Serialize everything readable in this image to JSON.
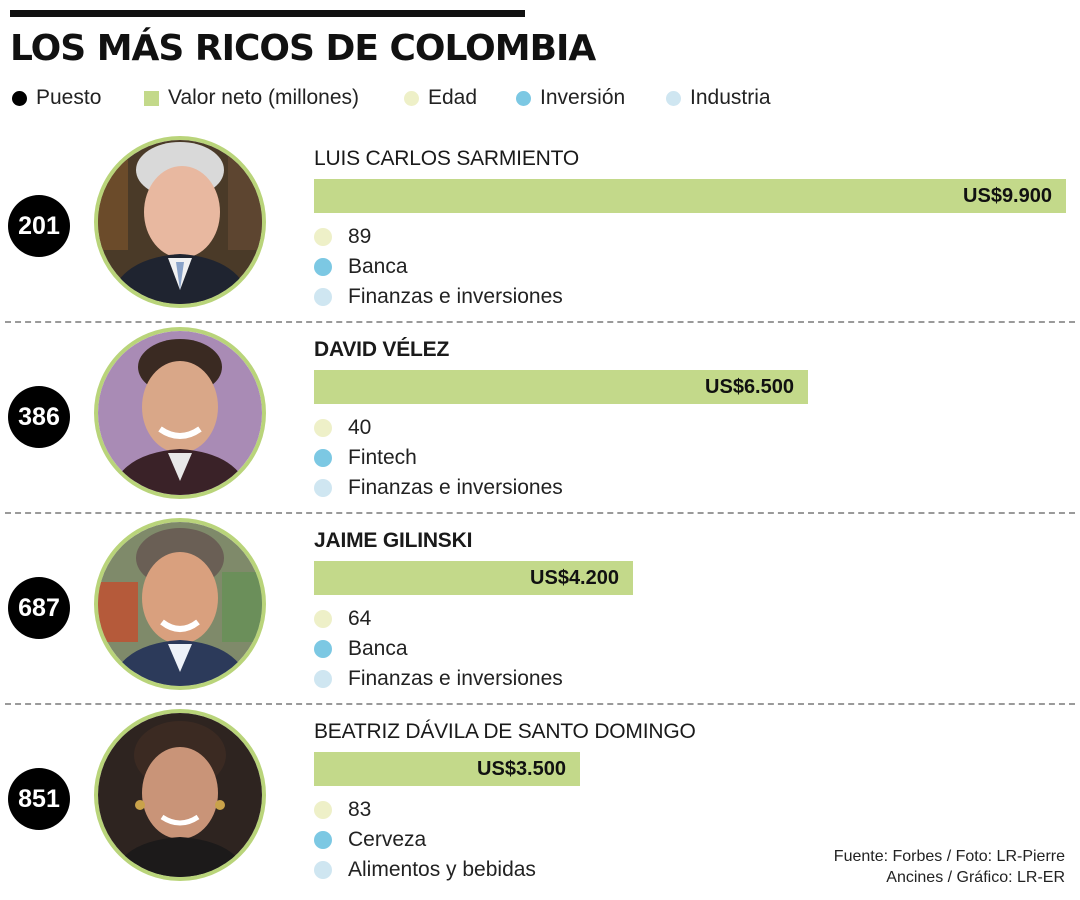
{
  "title": "LOS MÁS RICOS DE COLOMBIA",
  "legend": [
    {
      "label": "Puesto",
      "color": "#000000",
      "shape": "circle"
    },
    {
      "label": "Valor neto (millones)",
      "color": "#c3d98a",
      "shape": "square"
    },
    {
      "label": "Edad",
      "color": "#eef0c8",
      "shape": "circle"
    },
    {
      "label": "Inversión",
      "color": "#7cc8e3",
      "shape": "circle"
    },
    {
      "label": "Industria",
      "color": "#cfe6f1",
      "shape": "circle"
    }
  ],
  "colors": {
    "bar": "#c3d98a",
    "edad": "#eef0c8",
    "inversion": "#7cc8e3",
    "industria": "#cfe6f1",
    "rank": "#000000"
  },
  "people": [
    {
      "rank": "201",
      "name": "LUIS CARLOS SARMIENTO",
      "value_label": "US$9.900",
      "age": "89",
      "investment": "Banca",
      "industry": "Finanzas e inversiones",
      "photo": "portrait-photo-luis-carlos-sarmiento"
    },
    {
      "rank": "386",
      "name": "DAVID VÉLEZ",
      "value_label": "US$6.500",
      "age": "40",
      "investment": "Fintech",
      "industry": "Finanzas e inversiones",
      "photo": "portrait-photo-david-velez"
    },
    {
      "rank": "687",
      "name": "JAIME GILINSKI",
      "value_label": "US$4.200",
      "age": "64",
      "investment": "Banca",
      "industry": "Finanzas e inversiones",
      "photo": "portrait-photo-jaime-gilinski"
    },
    {
      "rank": "851",
      "name": "BEATRIZ DÁVILA DE SANTO DOMINGO",
      "value_label": "US$3.500",
      "age": "83",
      "investment": "Cerveza",
      "industry": "Alimentos y bebidas",
      "photo": "portrait-photo-beatriz-davila"
    }
  ],
  "source": {
    "line1": "Fuente: Forbes / Foto: LR-Pierre",
    "line2": "Ancines / Gráfico: LR-ER"
  },
  "chart_data": {
    "type": "bar",
    "orientation": "horizontal",
    "title": "LOS MÁS RICOS DE COLOMBIA",
    "categories": [
      "LUIS CARLOS SARMIENTO",
      "DAVID VÉLEZ",
      "JAIME GILINSKI",
      "BEATRIZ DÁVILA DE SANTO DOMINGO"
    ],
    "series": [
      {
        "name": "Valor neto (millones)",
        "values": [
          9900,
          6500,
          4200,
          3500
        ]
      }
    ],
    "value_labels": [
      "US$9.900",
      "US$6.500",
      "US$4.200",
      "US$3.500"
    ],
    "grid": false,
    "legend_position": "top"
  }
}
